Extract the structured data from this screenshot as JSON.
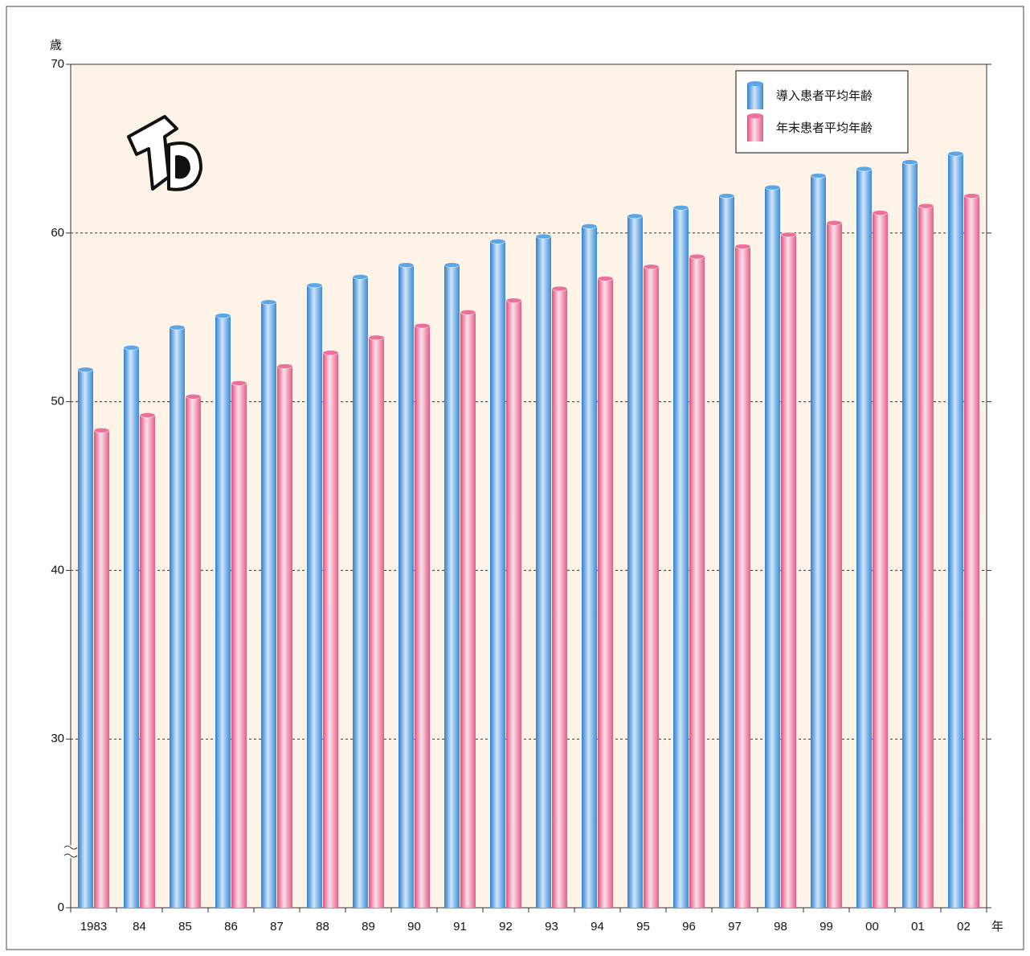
{
  "chart_data": {
    "type": "bar",
    "y_label": "歳",
    "x_label": "年",
    "categories": [
      "1983",
      "84",
      "85",
      "86",
      "87",
      "88",
      "89",
      "90",
      "91",
      "92",
      "93",
      "94",
      "95",
      "96",
      "97",
      "98",
      "99",
      "00",
      "01",
      "02"
    ],
    "series": [
      {
        "name": "導入患者平均年齢",
        "color": "#5aa6e6",
        "values": [
          51.9,
          53.2,
          54.4,
          55.1,
          55.9,
          56.9,
          57.4,
          58.1,
          58.1,
          59.5,
          59.8,
          60.4,
          61.0,
          61.5,
          62.2,
          62.7,
          63.4,
          63.8,
          64.2,
          64.7
        ]
      },
      {
        "name": "年末患者平均年齢",
        "color": "#ee6f9a",
        "values": [
          48.3,
          49.2,
          50.3,
          51.1,
          52.1,
          52.9,
          53.8,
          54.5,
          55.3,
          56.0,
          56.7,
          57.3,
          58.0,
          58.6,
          59.2,
          59.9,
          60.6,
          61.2,
          61.6,
          62.2
        ]
      }
    ],
    "ylim": [
      0,
      70
    ],
    "yticks": [
      0,
      30,
      40,
      50,
      60,
      70
    ],
    "y_axis_break": true,
    "grid": true,
    "legend": "upper right"
  }
}
